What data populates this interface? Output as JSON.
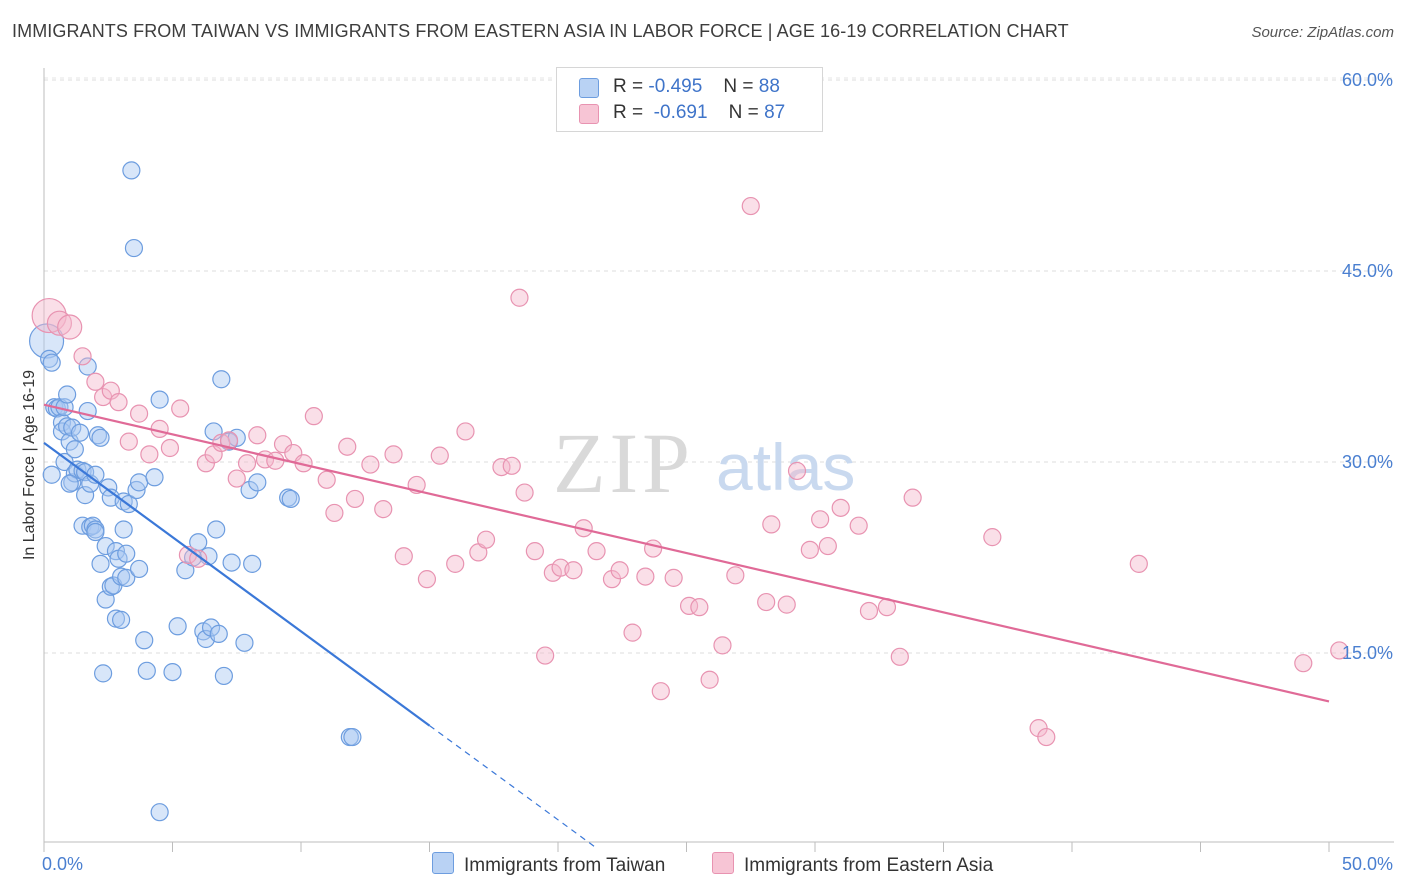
{
  "title": "IMMIGRANTS FROM TAIWAN VS IMMIGRANTS FROM EASTERN ASIA IN LABOR FORCE | AGE 16-19 CORRELATION CHART",
  "source": "Source: ZipAtlas.com",
  "watermark": {
    "zip": "ZIP",
    "atlas": "atlas"
  },
  "legend": {
    "taiwan": {
      "r_label": "R =",
      "r_value": "-0.495",
      "n_label": "N =",
      "n_value": "88"
    },
    "eastern_asia": {
      "r_label": "R =",
      "r_value": "-0.691",
      "n_label": "N =",
      "n_value": "87"
    }
  },
  "bottom_legend": {
    "taiwan": "Immigrants from Taiwan",
    "eastern_asia": "Immigrants from Eastern Asia"
  },
  "colors": {
    "taiwan": "#3b78d8",
    "taiwan_fill": "#a9c8f2",
    "eastern_asia": "#e06a97",
    "eastern_asia_fill": "#f4b8cc",
    "axis_text": "#4a7fd0"
  },
  "chart_data": {
    "type": "scatter",
    "title": "IMMIGRANTS FROM TAIWAN VS IMMIGRANTS FROM EASTERN ASIA IN LABOR FORCE | AGE 16-19 CORRELATION CHART",
    "xlabel": "",
    "ylabel": "In Labor Force | Age 16-19",
    "xlim": [
      0,
      50
    ],
    "ylim": [
      0,
      62
    ],
    "x_tick_labels": [
      "0.0%",
      "50.0%"
    ],
    "y_ticks": [
      15,
      30,
      45,
      60
    ],
    "y_tick_labels": [
      "15.0%",
      "30.0%",
      "45.0%",
      "60.0%"
    ],
    "series": [
      {
        "name": "Immigrants from Taiwan",
        "trend": {
          "x0": 0,
          "y0": 31.5,
          "x1": 15,
          "y1": 9.3,
          "dash_to_x": 21.5
        },
        "points": [
          [
            0.1,
            39.5
          ],
          [
            0.2,
            38.1
          ],
          [
            0.3,
            37.8
          ],
          [
            0.3,
            29.0
          ],
          [
            0.4,
            34.3
          ],
          [
            0.5,
            34.2
          ],
          [
            0.6,
            34.3
          ],
          [
            0.7,
            33.1
          ],
          [
            0.7,
            32.4
          ],
          [
            0.8,
            34.3
          ],
          [
            0.8,
            30.0
          ],
          [
            0.9,
            35.3
          ],
          [
            0.9,
            32.8
          ],
          [
            1.0,
            31.6
          ],
          [
            1.1,
            28.4
          ],
          [
            1.1,
            32.7
          ],
          [
            1.2,
            29.1
          ],
          [
            1.2,
            31.0
          ],
          [
            1.3,
            29.4
          ],
          [
            1.4,
            32.3
          ],
          [
            1.5,
            29.3
          ],
          [
            1.5,
            25.0
          ],
          [
            1.6,
            29.2
          ],
          [
            1.6,
            27.4
          ],
          [
            1.7,
            37.5
          ],
          [
            1.7,
            34.0
          ],
          [
            1.8,
            24.9
          ],
          [
            1.8,
            28.3
          ],
          [
            1.9,
            25.0
          ],
          [
            2.0,
            24.7
          ],
          [
            2.0,
            29.0
          ],
          [
            2.1,
            32.1
          ],
          [
            2.2,
            31.9
          ],
          [
            2.2,
            22.0
          ],
          [
            2.3,
            13.4
          ],
          [
            2.4,
            23.4
          ],
          [
            2.4,
            19.2
          ],
          [
            2.5,
            28.0
          ],
          [
            2.6,
            27.2
          ],
          [
            2.6,
            20.2
          ],
          [
            2.7,
            20.3
          ],
          [
            2.8,
            23.0
          ],
          [
            2.8,
            17.7
          ],
          [
            2.9,
            22.4
          ],
          [
            3.0,
            21.0
          ],
          [
            3.1,
            26.9
          ],
          [
            3.1,
            24.7
          ],
          [
            3.2,
            22.8
          ],
          [
            3.2,
            20.9
          ],
          [
            3.3,
            26.7
          ],
          [
            3.4,
            52.9
          ],
          [
            3.5,
            46.8
          ],
          [
            3.6,
            27.8
          ],
          [
            3.7,
            28.4
          ],
          [
            3.7,
            21.6
          ],
          [
            3.9,
            16.0
          ],
          [
            4.0,
            13.6
          ],
          [
            4.3,
            28.8
          ],
          [
            4.5,
            34.9
          ],
          [
            5.0,
            13.5
          ],
          [
            5.2,
            17.1
          ],
          [
            5.5,
            21.5
          ],
          [
            5.8,
            22.5
          ],
          [
            6.0,
            23.7
          ],
          [
            6.2,
            16.7
          ],
          [
            6.3,
            16.1
          ],
          [
            6.4,
            22.6
          ],
          [
            6.5,
            17.0
          ],
          [
            6.6,
            32.4
          ],
          [
            6.7,
            24.7
          ],
          [
            6.8,
            16.5
          ],
          [
            6.9,
            36.5
          ],
          [
            7.0,
            13.2
          ],
          [
            7.2,
            31.6
          ],
          [
            7.3,
            22.1
          ],
          [
            7.5,
            31.9
          ],
          [
            7.8,
            15.8
          ],
          [
            8.0,
            27.8
          ],
          [
            8.1,
            22.0
          ],
          [
            8.3,
            28.4
          ],
          [
            9.5,
            27.2
          ],
          [
            9.6,
            27.1
          ],
          [
            11.9,
            8.4
          ],
          [
            12.0,
            8.4
          ],
          [
            4.5,
            2.5
          ],
          [
            2.0,
            24.5
          ],
          [
            3.0,
            17.6
          ],
          [
            1.0,
            28.3
          ]
        ]
      },
      {
        "name": "Immigrants from Eastern Asia",
        "trend": {
          "x0": 0,
          "y0": 34.5,
          "x1": 50,
          "y1": 11.2
        },
        "points": [
          [
            0.2,
            41.5
          ],
          [
            0.6,
            40.9
          ],
          [
            1.0,
            40.6
          ],
          [
            1.5,
            38.3
          ],
          [
            2.0,
            36.3
          ],
          [
            2.3,
            35.1
          ],
          [
            2.6,
            35.6
          ],
          [
            2.9,
            34.7
          ],
          [
            3.3,
            31.6
          ],
          [
            3.7,
            33.8
          ],
          [
            4.1,
            30.6
          ],
          [
            4.5,
            32.6
          ],
          [
            4.9,
            31.1
          ],
          [
            5.3,
            34.2
          ],
          [
            5.6,
            22.7
          ],
          [
            6.0,
            22.4
          ],
          [
            6.3,
            29.9
          ],
          [
            6.6,
            30.6
          ],
          [
            6.9,
            31.5
          ],
          [
            7.2,
            31.7
          ],
          [
            7.5,
            28.7
          ],
          [
            7.9,
            29.9
          ],
          [
            8.3,
            32.1
          ],
          [
            8.6,
            30.2
          ],
          [
            9.0,
            30.1
          ],
          [
            9.3,
            31.4
          ],
          [
            9.7,
            30.7
          ],
          [
            10.1,
            29.9
          ],
          [
            10.5,
            33.6
          ],
          [
            11.0,
            28.6
          ],
          [
            11.3,
            26.0
          ],
          [
            11.8,
            31.2
          ],
          [
            12.1,
            27.1
          ],
          [
            12.7,
            29.8
          ],
          [
            13.2,
            26.3
          ],
          [
            13.6,
            30.6
          ],
          [
            14.0,
            22.6
          ],
          [
            14.5,
            28.2
          ],
          [
            14.9,
            20.8
          ],
          [
            15.4,
            30.5
          ],
          [
            16.0,
            22.0
          ],
          [
            16.4,
            32.4
          ],
          [
            16.9,
            22.9
          ],
          [
            17.2,
            23.9
          ],
          [
            17.8,
            29.6
          ],
          [
            18.2,
            29.7
          ],
          [
            18.5,
            42.9
          ],
          [
            18.7,
            27.6
          ],
          [
            19.1,
            23.0
          ],
          [
            19.5,
            14.8
          ],
          [
            19.8,
            21.3
          ],
          [
            20.1,
            21.7
          ],
          [
            20.6,
            21.5
          ],
          [
            21.0,
            24.8
          ],
          [
            21.5,
            23.0
          ],
          [
            22.1,
            20.8
          ],
          [
            22.4,
            21.5
          ],
          [
            22.9,
            16.6
          ],
          [
            23.4,
            21.0
          ],
          [
            23.7,
            23.2
          ],
          [
            24.0,
            12.0
          ],
          [
            24.5,
            20.9
          ],
          [
            25.1,
            18.7
          ],
          [
            25.5,
            18.6
          ],
          [
            25.9,
            12.9
          ],
          [
            26.4,
            15.6
          ],
          [
            26.9,
            21.1
          ],
          [
            27.5,
            50.1
          ],
          [
            28.1,
            19.0
          ],
          [
            28.3,
            25.1
          ],
          [
            28.9,
            18.8
          ],
          [
            29.3,
            29.3
          ],
          [
            29.8,
            23.1
          ],
          [
            30.2,
            25.5
          ],
          [
            30.5,
            23.4
          ],
          [
            31.0,
            26.4
          ],
          [
            31.7,
            25.0
          ],
          [
            32.1,
            18.3
          ],
          [
            32.8,
            18.6
          ],
          [
            33.3,
            14.7
          ],
          [
            33.8,
            27.2
          ],
          [
            36.9,
            24.1
          ],
          [
            38.7,
            9.1
          ],
          [
            39.0,
            8.4
          ],
          [
            42.6,
            22.0
          ],
          [
            49.0,
            14.2
          ],
          [
            50.4,
            15.2
          ]
        ]
      }
    ]
  }
}
